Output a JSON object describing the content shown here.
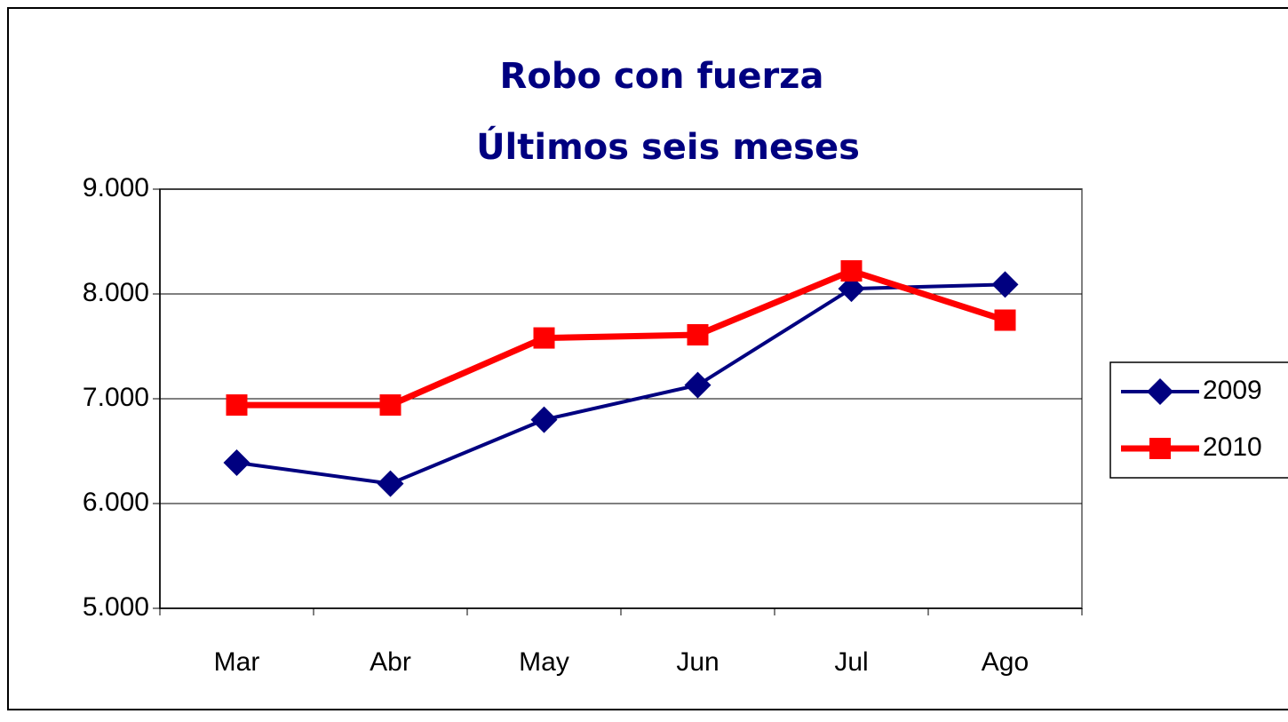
{
  "chart_data": {
    "type": "line",
    "title": "Robo con fuerza",
    "subtitle": "Últimos seis meses",
    "categories": [
      "Mar",
      "Abr",
      "May",
      "Jun",
      "Jul",
      "Ago"
    ],
    "series": [
      {
        "name": "2009",
        "color": "#000080",
        "marker": "diamond",
        "values": [
          6390,
          6190,
          6800,
          7130,
          8050,
          8090
        ]
      },
      {
        "name": "2010",
        "color": "#ff0000",
        "marker": "square",
        "values": [
          6940,
          6940,
          7580,
          7610,
          8220,
          7750
        ]
      }
    ],
    "ylim": [
      5000,
      9000
    ],
    "yticks": [
      {
        "value": 5000,
        "label": "5.000"
      },
      {
        "value": 6000,
        "label": "6.000"
      },
      {
        "value": 7000,
        "label": "7.000"
      },
      {
        "value": 8000,
        "label": "8.000"
      },
      {
        "value": 9000,
        "label": "9.000"
      }
    ],
    "grid": true,
    "legend": "right"
  }
}
